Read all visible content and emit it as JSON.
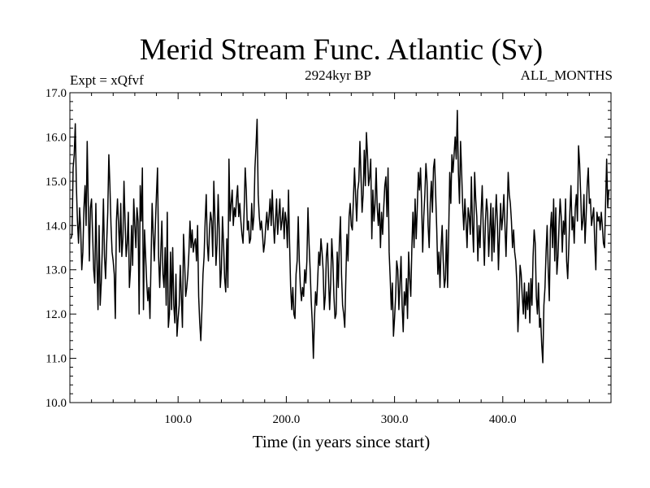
{
  "chart_data": {
    "type": "line",
    "title": "Merid Stream Func. Atlantic (Sv)",
    "subtitle": "2924kyr BP",
    "left_label": "Expt = xQfvf",
    "right_label": "ALL_MONTHS",
    "xlabel": "Time (in years since start)",
    "ylabel": "",
    "xlim": [
      0,
      500
    ],
    "ylim": [
      10.0,
      17.0
    ],
    "xticks": [
      100.0,
      200.0,
      300.0,
      400.0
    ],
    "xtick_labels": [
      "100.0",
      "200.0",
      "300.0",
      "400.0"
    ],
    "yticks": [
      10.0,
      11.0,
      12.0,
      13.0,
      14.0,
      15.0,
      16.0,
      17.0
    ],
    "ytick_labels": [
      "10.0",
      "11.0",
      "12.0",
      "13.0",
      "14.0",
      "15.0",
      "16.0",
      "17.0"
    ],
    "grid": false,
    "line_color": "#000000",
    "series": [
      {
        "name": "Merid Stream Func. Atlantic",
        "x_start": 1,
        "x_step": 1,
        "values": [
          13.7,
          13.8,
          15.3,
          15.6,
          16.3,
          14.9,
          14.1,
          13.6,
          14.4,
          13.9,
          13.0,
          13.4,
          14.4,
          14.9,
          14.0,
          15.9,
          14.5,
          13.2,
          14.4,
          14.6,
          13.8,
          13.0,
          12.7,
          14.5,
          13.2,
          12.1,
          14.0,
          12.2,
          12.7,
          13.5,
          14.6,
          13.3,
          12.8,
          13.6,
          14.3,
          15.6,
          14.9,
          14.0,
          13.4,
          13.2,
          12.9,
          11.9,
          14.1,
          14.6,
          14.0,
          13.4,
          14.5,
          13.3,
          13.7,
          15.0,
          14.1,
          13.3,
          13.6,
          14.3,
          12.6,
          13.0,
          14.0,
          13.1,
          14.6,
          14.0,
          13.5,
          14.4,
          14.1,
          12.0,
          14.9,
          14.1,
          15.3,
          12.1,
          13.9,
          13.3,
          12.7,
          12.3,
          12.6,
          11.9,
          13.2,
          14.5,
          13.8,
          13.2,
          14.0,
          14.7,
          15.3,
          13.3,
          12.6,
          13.4,
          14.1,
          12.9,
          12.6,
          13.5,
          12.2,
          14.3,
          11.7,
          12.0,
          13.4,
          12.1,
          13.5,
          12.2,
          11.8,
          12.9,
          11.5,
          11.9,
          12.2,
          13.1,
          12.4,
          11.7,
          13.8,
          13.2,
          12.4,
          12.6,
          12.9,
          13.4,
          14.1,
          13.5,
          13.9,
          13.4,
          13.6,
          13.7,
          13.2,
          14.0,
          12.4,
          11.8,
          11.4,
          12.1,
          12.9,
          13.3,
          14.1,
          14.7,
          13.6,
          13.2,
          13.9,
          14.3,
          14.1,
          13.3,
          15.0,
          14.2,
          13.1,
          13.6,
          14.7,
          13.9,
          12.6,
          13.0,
          14.2,
          13.6,
          12.8,
          12.5,
          13.7,
          12.6,
          15.5,
          14.1,
          14.5,
          14.8,
          14.0,
          14.4,
          14.2,
          14.6,
          14.9,
          14.2,
          14.5,
          14.1,
          13.8,
          13.6,
          14.3,
          15.3,
          14.8,
          13.9,
          14.1,
          13.6,
          13.7,
          14.5,
          13.9,
          14.2,
          15.3,
          15.8,
          16.4,
          14.7,
          14.2,
          13.9,
          14.1,
          13.8,
          13.4,
          13.6,
          14.0,
          14.3,
          13.9,
          14.2,
          14.6,
          14.0,
          14.8,
          14.1,
          13.6,
          14.1,
          14.6,
          13.8,
          14.2,
          14.6,
          13.9,
          14.1,
          14.4,
          13.7,
          14.3,
          14.1,
          13.5,
          14.8,
          13.6,
          12.6,
          12.1,
          12.6,
          12.0,
          11.9,
          12.9,
          13.2,
          14.2,
          13.2,
          12.6,
          12.3,
          12.6,
          12.4,
          13.0,
          12.7,
          13.2,
          14.4,
          13.6,
          13.0,
          12.3,
          11.8,
          11.0,
          11.9,
          12.5,
          12.2,
          12.8,
          13.4,
          13.1,
          13.7,
          13.4,
          13.0,
          12.1,
          12.4,
          13.3,
          13.6,
          12.8,
          12.1,
          12.7,
          13.7,
          13.2,
          12.4,
          11.9,
          12.0,
          13.4,
          12.6,
          13.6,
          14.2,
          12.9,
          12.2,
          12.0,
          11.7,
          12.8,
          13.8,
          13.2,
          14.2,
          14.5,
          14.0,
          13.9,
          14.6,
          15.3,
          14.7,
          14.1,
          14.8,
          15.0,
          15.9,
          15.1,
          14.3,
          14.7,
          15.7,
          14.9,
          16.1,
          15.6,
          14.9,
          15.1,
          15.5,
          13.7,
          14.8,
          14.1,
          14.5,
          15.3,
          14.4,
          14.0,
          14.5,
          13.5,
          14.3,
          13.8,
          14.4,
          14.9,
          15.1,
          14.2,
          15.3,
          13.4,
          12.8,
          12.1,
          12.7,
          11.5,
          11.9,
          12.4,
          13.2,
          13.0,
          12.1,
          12.7,
          13.3,
          12.2,
          11.6,
          12.5,
          12.2,
          12.8,
          11.9,
          13.4,
          12.8,
          12.4,
          13.5,
          14.3,
          13.5,
          14.6,
          13.7,
          14.4,
          15.2,
          14.8,
          15.3,
          14.5,
          13.4,
          14.2,
          14.7,
          15.4,
          15.0,
          14.0,
          13.5,
          14.5,
          15.0,
          14.3,
          15.3,
          15.5,
          14.7,
          13.9,
          12.9,
          13.4,
          12.6,
          13.5,
          14.0,
          13.2,
          12.6,
          12.8,
          13.9,
          12.6,
          13.8,
          15.2,
          14.5,
          15.6,
          15.2,
          15.6,
          16.0,
          15.5,
          16.6,
          15.2,
          14.5,
          15.9,
          15.2,
          14.4,
          13.9,
          14.6,
          14.1,
          13.5,
          14.4,
          14.2,
          13.8,
          15.1,
          14.0,
          13.4,
          15.2,
          14.6,
          14.2,
          13.2,
          14.0,
          13.5,
          14.3,
          14.9,
          13.9,
          13.1,
          14.1,
          14.6,
          14.3,
          13.3,
          13.9,
          14.5,
          13.2,
          14.4,
          13.4,
          14.1,
          14.7,
          14.1,
          13.0,
          13.8,
          14.5,
          13.9,
          14.2,
          14.7,
          14.0,
          13.3,
          14.2,
          15.2,
          14.7,
          14.5,
          14.1,
          13.5,
          13.9,
          13.4,
          13.2,
          12.7,
          11.6,
          12.2,
          13.1,
          12.9,
          12.4,
          12.0,
          12.7,
          11.9,
          12.5,
          12.1,
          12.7,
          11.8,
          12.8,
          12.2,
          13.3,
          13.9,
          13.6,
          12.4,
          12.0,
          12.7,
          11.7,
          11.9,
          11.3,
          10.9,
          12.2,
          12.6,
          13.4,
          14.0,
          13.0,
          12.3,
          13.9,
          14.3,
          13.5,
          14.6,
          13.2,
          14.4,
          12.9,
          13.3,
          14.0,
          14.6,
          14.2,
          13.4,
          14.1,
          13.8,
          14.6,
          13.2,
          12.8,
          13.5,
          14.3,
          14.9,
          13.9,
          14.2,
          13.6,
          14.4,
          14.7,
          14.1,
          15.8,
          15.4,
          14.7,
          13.9,
          14.1,
          14.7,
          13.6,
          14.2,
          14.9,
          15.3,
          14.5,
          14.6,
          14.0,
          14.2,
          14.4,
          13.6,
          13.0,
          14.3,
          14.1,
          14.2,
          13.9,
          14.3,
          14.0,
          13.6,
          13.5,
          14.5,
          15.5,
          14.4,
          14.8
        ]
      }
    ]
  }
}
